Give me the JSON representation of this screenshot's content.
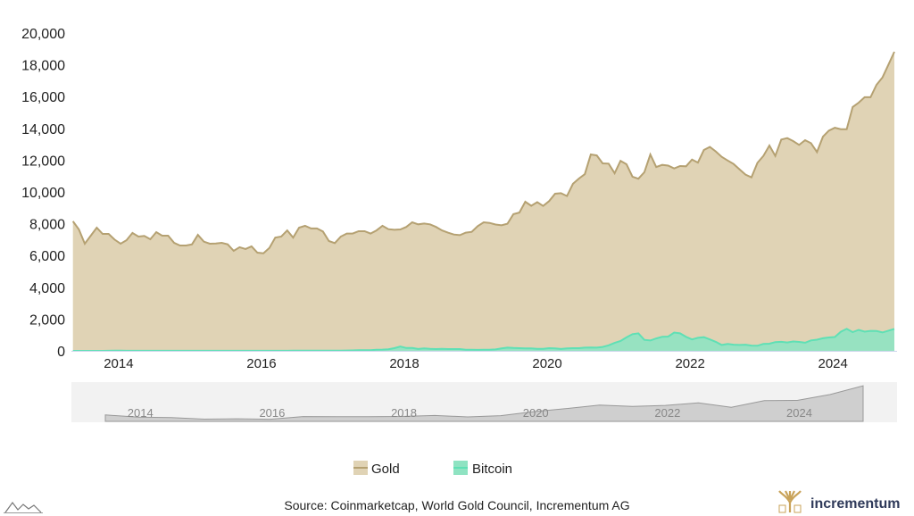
{
  "chart_data": {
    "type": "area",
    "title": "",
    "xlabel": "",
    "ylabel": "",
    "x_start": "2013-05",
    "x_frequency": "monthly",
    "xlim": [
      2013.36,
      2024.86
    ],
    "ylim": [
      0,
      20000
    ],
    "yticks": [
      "0",
      "2,000",
      "4,000",
      "6,000",
      "8,000",
      "10,000",
      "12,000",
      "14,000",
      "16,000",
      "18,000",
      "20,000"
    ],
    "ytick_values": [
      0,
      2000,
      4000,
      6000,
      8000,
      10000,
      12000,
      14000,
      16000,
      18000,
      20000
    ],
    "xticks": [
      "2014",
      "2016",
      "2018",
      "2020",
      "2022",
      "2024"
    ],
    "xtick_values": [
      2014,
      2016,
      2018,
      2020,
      2022,
      2024
    ],
    "grid": false,
    "legend_position": "bottom-center",
    "series": [
      {
        "name": "Gold",
        "color": "#e0d3b5",
        "line_color": "#b5a172",
        "values": [
          8150,
          7640,
          6740,
          7250,
          7750,
          7360,
          7360,
          7000,
          6740,
          6960,
          7420,
          7190,
          7230,
          7020,
          7470,
          7250,
          7250,
          6800,
          6630,
          6630,
          6700,
          7300,
          6870,
          6740,
          6760,
          6800,
          6700,
          6290,
          6520,
          6410,
          6580,
          6180,
          6140,
          6480,
          7130,
          7190,
          7580,
          7130,
          7750,
          7870,
          7700,
          7700,
          7510,
          6910,
          6780,
          7190,
          7380,
          7380,
          7530,
          7530,
          7380,
          7580,
          7870,
          7660,
          7620,
          7640,
          7800,
          8090,
          7960,
          8010,
          7960,
          7800,
          7580,
          7440,
          7320,
          7280,
          7440,
          7490,
          7850,
          8090,
          8050,
          7950,
          7900,
          8000,
          8600,
          8700,
          9380,
          9130,
          9360,
          9120,
          9420,
          9890,
          9920,
          9740,
          10510,
          10840,
          11120,
          12360,
          12300,
          11800,
          11780,
          11180,
          11960,
          11740,
          10960,
          10830,
          11240,
          12360,
          11570,
          11700,
          11660,
          11480,
          11630,
          11610,
          12040,
          11850,
          12640,
          12830,
          12550,
          12210,
          11980,
          11760,
          11420,
          11090,
          10920,
          11830,
          12270,
          12920,
          12270,
          13300,
          13390,
          13200,
          12960,
          13260,
          13070,
          12510,
          13480,
          13860,
          14040,
          13950,
          13950,
          15340,
          15620,
          15960,
          15960,
          16740,
          17210,
          18000,
          18820
        ]
      },
      {
        "name": "Bitcoin",
        "color": "#8fe3c2",
        "line_color": "#5fe0b5",
        "values": [
          1,
          1,
          1,
          1,
          1,
          2,
          6,
          10,
          10,
          8,
          6,
          6,
          6,
          8,
          8,
          7,
          6,
          5,
          5,
          4,
          3,
          3,
          3,
          3,
          3,
          3,
          4,
          3,
          3,
          4,
          5,
          6,
          6,
          7,
          7,
          7,
          8,
          10,
          10,
          9,
          10,
          11,
          12,
          15,
          16,
          18,
          20,
          30,
          40,
          40,
          45,
          70,
          80,
          100,
          170,
          270,
          180,
          180,
          120,
          160,
          130,
          110,
          130,
          110,
          110,
          110,
          70,
          65,
          60,
          65,
          70,
          90,
          150,
          200,
          180,
          170,
          150,
          160,
          130,
          130,
          170,
          160,
          120,
          160,
          170,
          170,
          200,
          210,
          200,
          250,
          350,
          500,
          620,
          850,
          1050,
          1100,
          690,
          650,
          780,
          880,
          900,
          1150,
          1100,
          880,
          720,
          820,
          860,
          720,
          570,
          370,
          430,
          390,
          370,
          390,
          330,
          320,
          440,
          450,
          550,
          570,
          530,
          590,
          560,
          510,
          660,
          700,
          790,
          840,
          870,
          1200,
          1380,
          1180,
          1320,
          1210,
          1260,
          1250,
          1160,
          1270,
          1380
        ]
      }
    ],
    "navigator": {
      "ticks": [
        "2014",
        "2016",
        "2018",
        "2020",
        "2022",
        "2024"
      ]
    }
  },
  "footer": {
    "source": "Source: Coinmarketcap, World Gold Council, Incrementum AG",
    "brand": "incrementum"
  },
  "icons": {
    "left_logo": "mountain-icon",
    "right_logo": "tree-icon"
  }
}
